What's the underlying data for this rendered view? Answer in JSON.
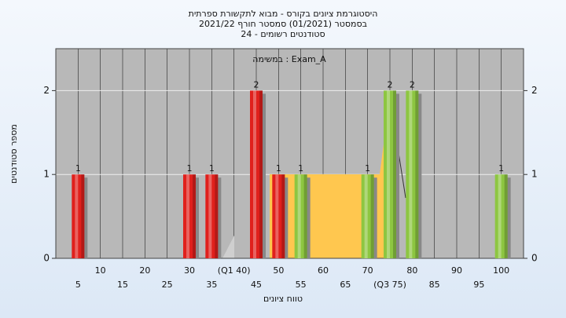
{
  "chart_data": {
    "type": "bar",
    "title": [
      "היסטוגרמת ציונים בקורס - מבוא לתקשורת ספרתית",
      "בסמסטר  (01/2021)  סמסטר חורף 2021/22",
      "סטודנטים רשומים - 24"
    ],
    "subtitle": "במשימה : Exam_A",
    "x_label": "טווח ציונים",
    "y_label": "מספר סטודנטים",
    "x": [
      5,
      30,
      35,
      45,
      50,
      55,
      70,
      75,
      80,
      100
    ],
    "values": [
      1,
      1,
      1,
      2,
      1,
      1,
      1,
      2,
      2,
      1
    ],
    "colors": [
      "#e0201c",
      "#e0201c",
      "#e0201c",
      "#e0201c",
      "#e0201c",
      "#8dc641",
      "#8dc641",
      "#8dc641",
      "#8dc641",
      "#8dc641"
    ],
    "xlim": [
      0,
      105
    ],
    "xticks": [
      5,
      10,
      15,
      20,
      25,
      30,
      35,
      {
        "value": 40,
        "label": "(Q1 40)"
      },
      45,
      50,
      55,
      60,
      65,
      70,
      {
        "value": 75,
        "label": "(Q3 75)"
      },
      80,
      85,
      90,
      95,
      100
    ],
    "ylim": [
      0,
      2.5
    ],
    "yticks": [
      0,
      1,
      2
    ],
    "grid": true
  }
}
